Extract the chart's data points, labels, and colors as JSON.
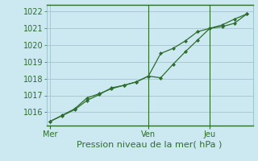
{
  "background_color": "#cce8f0",
  "grid_color": "#aac8d4",
  "line_color": "#2d6e2d",
  "marker_color": "#2d6e2d",
  "xlabel": "Pression niveau de la mer( hPa )",
  "ylim": [
    1015.2,
    1022.4
  ],
  "yticks": [
    1016,
    1017,
    1018,
    1019,
    1020,
    1021,
    1022
  ],
  "xtick_labels": [
    "Mer",
    "Ven",
    "Jeu"
  ],
  "xtick_positions": [
    0,
    8,
    13
  ],
  "vlines": [
    8,
    13
  ],
  "line1_x": [
    0,
    1,
    2,
    3,
    4,
    5,
    6,
    7,
    8,
    9,
    10,
    11,
    12,
    13,
    14,
    15,
    16
  ],
  "line1_y": [
    1015.45,
    1015.8,
    1016.15,
    1016.7,
    1017.05,
    1017.45,
    1017.6,
    1017.8,
    1018.15,
    1019.5,
    1019.8,
    1020.25,
    1020.8,
    1021.0,
    1021.2,
    1021.55,
    1021.85
  ],
  "line2_x": [
    0,
    1,
    2,
    3,
    4,
    5,
    6,
    7,
    8,
    9,
    10,
    11,
    12,
    13,
    14,
    15,
    16
  ],
  "line2_y": [
    1015.45,
    1015.82,
    1016.2,
    1016.85,
    1017.1,
    1017.4,
    1017.6,
    1017.8,
    1018.15,
    1018.05,
    1018.85,
    1019.6,
    1020.3,
    1021.0,
    1021.1,
    1021.3,
    1021.85
  ],
  "tick_fontsize": 7,
  "xlabel_fontsize": 8
}
